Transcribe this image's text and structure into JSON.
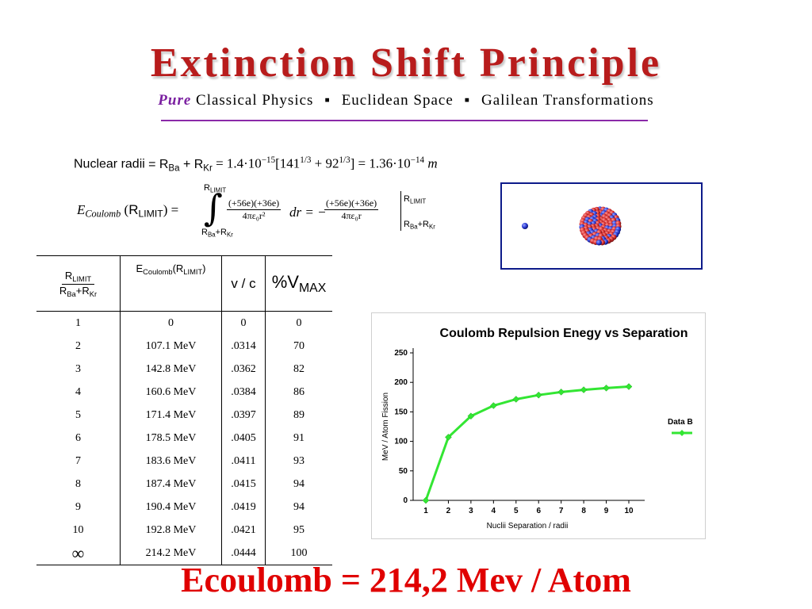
{
  "title": "Extinction Shift Principle",
  "subtitle": {
    "pure": "Pure",
    "items": [
      "Classical Physics",
      "Euclidean Space",
      "Galilean Transformations"
    ],
    "separator": "▪"
  },
  "nuclear_radii": {
    "label": "Nuclear radii",
    "equation": "= R_Ba + R_Kr = 1.4·10^-15[141^(1/3) + 92^(1/3)] = 1.36·10^-14 m"
  },
  "coulomb_integral": {
    "lhs_symbol": "E",
    "lhs_subscript": "Coulomb",
    "lhs_arg": "R",
    "lhs_arg_sub": "LIMIT",
    "upper_limit": "R",
    "upper_limit_sub": "LIMIT",
    "lower_limit": "R_Ba+R_Kr",
    "integrand_num": "(+56e)(+36e)",
    "integrand_den": "4πε₀r²",
    "dr": "dr",
    "result_num": "(+56e)(+36e)",
    "result_den": "4πε₀r",
    "eval_upper": "R_LIMIT",
    "eval_lower": "R_Ba+R_Kr"
  },
  "table": {
    "headers": [
      "R_LIMIT / (R_Ba+R_Kr)",
      "E_Coulomb(R_LIMIT)",
      "v / c",
      "%V_MAX"
    ],
    "rows": [
      [
        "1",
        "0",
        "0",
        "0"
      ],
      [
        "2",
        "107.1 MeV",
        ".0314",
        "70"
      ],
      [
        "3",
        "142.8 MeV",
        ".0362",
        "82"
      ],
      [
        "4",
        "160.6 MeV",
        ".0384",
        "86"
      ],
      [
        "5",
        "171.4 MeV",
        ".0397",
        "89"
      ],
      [
        "6",
        "178.5 MeV",
        ".0405",
        "91"
      ],
      [
        "7",
        "183.6 MeV",
        ".0411",
        "93"
      ],
      [
        "8",
        "187.4 MeV",
        ".0415",
        "94"
      ],
      [
        "9",
        "190.4 MeV",
        ".0419",
        "94"
      ],
      [
        "10",
        "192.8 MeV",
        ".0421",
        "95"
      ],
      [
        "∞",
        "214.2 MeV",
        ".0444",
        "100"
      ]
    ]
  },
  "chart_data": {
    "type": "line",
    "title": "Coulomb Repulsion Enegy vs Separation",
    "xlabel": "Nuclii Separation / radii",
    "ylabel": "MeV / Atom Fission",
    "categories": [
      "1",
      "2",
      "3",
      "4",
      "5",
      "6",
      "7",
      "8",
      "9",
      "10"
    ],
    "series": [
      {
        "name": "Data B",
        "values": [
          0,
          107.1,
          142.8,
          160.6,
          171.4,
          178.5,
          183.6,
          187.4,
          190.4,
          192.8
        ],
        "color": "#33e633"
      }
    ],
    "ylim": [
      0,
      250
    ],
    "yticks": [
      0,
      50,
      100,
      150,
      200,
      250
    ],
    "grid": false,
    "legend": "right"
  },
  "result": "Ecoulomb = 214,2 Mev / Atom",
  "colors": {
    "title": "#b81c1c",
    "pure": "#7a1fa0",
    "rule": "#8a2aa8",
    "result": "#e00000",
    "atom_box_border": "#0d1b8a",
    "proton": "#d42a2a",
    "neutron": "#2a3ad4"
  }
}
